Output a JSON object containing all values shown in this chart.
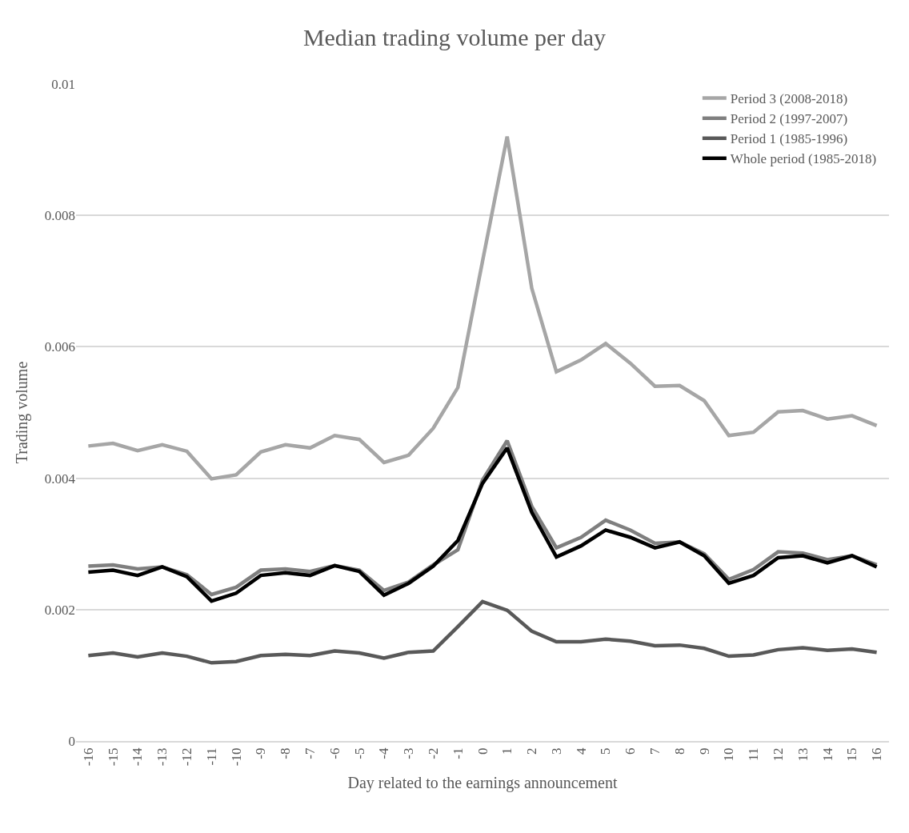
{
  "chart_data": {
    "type": "line",
    "title": "Median trading volume per day",
    "xlabel": "Day related to the earnings announcement",
    "ylabel": "Trading volume",
    "categories": [
      "-16",
      "-15",
      "-14",
      "-13",
      "-12",
      "-11",
      "-10",
      "-9",
      "-8",
      "-7",
      "-6",
      "-5",
      "-4",
      "-3",
      "-2",
      "-1",
      "0",
      "1",
      "2",
      "3",
      "4",
      "5",
      "6",
      "7",
      "8",
      "9",
      "10",
      "11",
      "12",
      "13",
      "14",
      "15",
      "16"
    ],
    "series": [
      {
        "name": "Period 3 (2008-2018)",
        "color": "#a6a6a6",
        "values": [
          0.00449,
          0.00453,
          0.00442,
          0.00451,
          0.00441,
          0.00399,
          0.00405,
          0.0044,
          0.00451,
          0.00446,
          0.00465,
          0.00459,
          0.00424,
          0.00435,
          0.00476,
          0.00538,
          0.0073,
          0.0092,
          0.00689,
          0.00562,
          0.0058,
          0.00605,
          0.00575,
          0.0054,
          0.00541,
          0.00518,
          0.00465,
          0.0047,
          0.00501,
          0.00503,
          0.0049,
          0.00495,
          0.0048
        ]
      },
      {
        "name": "Period 2 (1997-2007)",
        "color": "#7f7f7f",
        "values": [
          0.00266,
          0.00268,
          0.00262,
          0.00265,
          0.00253,
          0.00223,
          0.00234,
          0.0026,
          0.00262,
          0.00258,
          0.00267,
          0.0026,
          0.00229,
          0.00242,
          0.00268,
          0.00291,
          0.00397,
          0.00457,
          0.00357,
          0.00294,
          0.0031,
          0.00336,
          0.00321,
          0.00301,
          0.00303,
          0.00285,
          0.00246,
          0.00261,
          0.00288,
          0.00286,
          0.00276,
          0.00282,
          0.00268
        ]
      },
      {
        "name": "Period 1 (1985-1996)",
        "color": "#595959",
        "values": [
          0.0013,
          0.00134,
          0.00128,
          0.00134,
          0.00129,
          0.00119,
          0.00121,
          0.0013,
          0.00132,
          0.0013,
          0.00137,
          0.00134,
          0.00126,
          0.00135,
          0.00137,
          0.00174,
          0.00212,
          0.00199,
          0.00167,
          0.00151,
          0.00151,
          0.00155,
          0.00152,
          0.00145,
          0.00146,
          0.00141,
          0.00129,
          0.00131,
          0.00139,
          0.00142,
          0.00138,
          0.0014,
          0.00135
        ]
      },
      {
        "name": "Whole period (1985-2018)",
        "color": "#000000",
        "values": [
          0.00257,
          0.0026,
          0.00252,
          0.00265,
          0.0025,
          0.00213,
          0.00225,
          0.00252,
          0.00256,
          0.00252,
          0.00267,
          0.00258,
          0.00222,
          0.0024,
          0.00266,
          0.00305,
          0.00392,
          0.00446,
          0.00348,
          0.0028,
          0.00297,
          0.00321,
          0.0031,
          0.00294,
          0.00303,
          0.00282,
          0.0024,
          0.00252,
          0.00279,
          0.00282,
          0.00271,
          0.00282,
          0.00265
        ]
      }
    ],
    "ylim": [
      0,
      0.01
    ],
    "yticks": [
      0,
      0.002,
      0.004,
      0.006,
      0.008,
      0.01
    ],
    "grid": "y",
    "legend": "top right",
    "marker": "none",
    "line_style": "solid"
  }
}
